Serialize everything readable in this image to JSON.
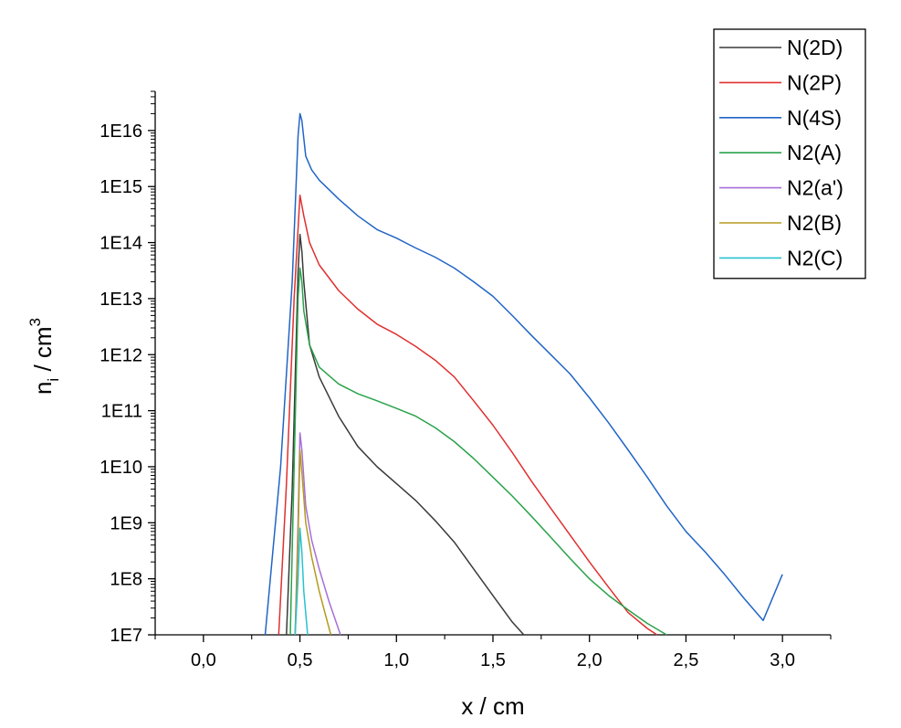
{
  "chart_data": {
    "type": "line",
    "title": "",
    "xlabel": "x / cm",
    "ylabel_main": "n",
    "ylabel_sub": "i",
    "ylabel_mid": " / cm",
    "ylabel_sup": "3",
    "x_scale": "linear",
    "y_scale": "log",
    "xlim": [
      -0.25,
      3.25
    ],
    "ylim": [
      10000000.0,
      5e+16
    ],
    "x_ticks": [
      0.0,
      0.5,
      1.0,
      1.5,
      2.0,
      2.5,
      3.0
    ],
    "x_tick_labels": [
      "0,0",
      "0,5",
      "1,0",
      "1,5",
      "2,0",
      "2,5",
      "3,0"
    ],
    "y_ticks": [
      10000000.0,
      100000000.0,
      1000000000.0,
      10000000000.0,
      100000000000.0,
      1000000000000.0,
      10000000000000.0,
      100000000000000.0,
      1000000000000000.0,
      1e+16
    ],
    "y_tick_labels": [
      "1E7",
      "1E8",
      "1E9",
      "1E10",
      "1E11",
      "1E12",
      "1E13",
      "1E14",
      "1E15",
      "1E16"
    ],
    "grid": false,
    "legend_position": "top-right",
    "series": [
      {
        "name": "N(2D)",
        "color": "#3a3a3a",
        "x": [
          0.43,
          0.46,
          0.49,
          0.5,
          0.51,
          0.52,
          0.55,
          0.6,
          0.7,
          0.8,
          0.9,
          1.0,
          1.1,
          1.2,
          1.3,
          1.4,
          1.5,
          1.6,
          1.66
        ],
        "y": [
          10000000.0,
          4000000000.0,
          30000000000000.0,
          140000000000000.0,
          70000000000000.0,
          20000000000000.0,
          1500000000000.0,
          400000000000.0,
          80000000000.0,
          23000000000.0,
          10000000000.0,
          5000000000.0,
          2500000000.0,
          1100000000.0,
          450000000.0,
          150000000.0,
          50000000.0,
          17000000.0,
          10000000.0
        ]
      },
      {
        "name": "N(2P)",
        "color": "#e0302f",
        "x": [
          0.39,
          0.43,
          0.47,
          0.5,
          0.52,
          0.55,
          0.6,
          0.7,
          0.8,
          0.9,
          1.0,
          1.1,
          1.2,
          1.3,
          1.4,
          1.5,
          1.6,
          1.7,
          1.8,
          1.9,
          2.0,
          2.1,
          2.2,
          2.3,
          2.35
        ],
        "y": [
          10000000.0,
          5000000000.0,
          10000000000000.0,
          700000000000000.0,
          300000000000000.0,
          100000000000000.0,
          40000000000000.0,
          14000000000000.0,
          6500000000000.0,
          3500000000000.0,
          2300000000000.0,
          1400000000000.0,
          800000000000.0,
          400000000000.0,
          150000000000.0,
          55000000000.0,
          18000000000.0,
          5500000000.0,
          1800000000.0,
          600000000.0,
          200000000.0,
          70000000.0,
          25000000.0,
          13000000.0,
          10000000.0
        ]
      },
      {
        "name": "N(4S)",
        "color": "#2165c6",
        "x": [
          0.32,
          0.4,
          0.46,
          0.49,
          0.5,
          0.51,
          0.53,
          0.56,
          0.6,
          0.7,
          0.8,
          0.9,
          1.0,
          1.1,
          1.2,
          1.3,
          1.4,
          1.5,
          1.6,
          1.7,
          1.8,
          1.9,
          2.0,
          2.1,
          2.2,
          2.3,
          2.4,
          2.5,
          2.6,
          2.7,
          2.8,
          2.9,
          3.0
        ],
        "y": [
          10000000.0,
          10000000000.0,
          20000000000000.0,
          8000000000000000.0,
          2e+16,
          1.5e+16,
          3500000000000000.0,
          2000000000000000.0,
          1300000000000000.0,
          600000000000000.0,
          300000000000000.0,
          170000000000000.0,
          120000000000000.0,
          80000000000000.0,
          55000000000000.0,
          35000000000000.0,
          20000000000000.0,
          11000000000000.0,
          5000000000000.0,
          2200000000000.0,
          1000000000000.0,
          450000000000.0,
          170000000000.0,
          60000000000.0,
          20000000000.0,
          6500000000.0,
          2000000000.0,
          700000000.0,
          300000000.0,
          120000000.0,
          45000000.0,
          18000000.0,
          120000000.0
        ]
      },
      {
        "name": "N2(A)",
        "color": "#2aa24a",
        "x": [
          0.45,
          0.47,
          0.49,
          0.5,
          0.51,
          0.52,
          0.55,
          0.6,
          0.7,
          0.8,
          0.9,
          1.0,
          1.1,
          1.2,
          1.3,
          1.4,
          1.5,
          1.6,
          1.7,
          1.8,
          1.9,
          2.0,
          2.1,
          2.2,
          2.3,
          2.4
        ],
        "y": [
          10000000.0,
          10000000000.0,
          10000000000000.0,
          35000000000000.0,
          20000000000000.0,
          6000000000000.0,
          1500000000000.0,
          600000000000.0,
          300000000000.0,
          200000000000.0,
          150000000000.0,
          110000000000.0,
          80000000000.0,
          50000000000.0,
          28000000000.0,
          14000000000.0,
          6500000000.0,
          3000000000.0,
          1300000000.0,
          550000000.0,
          230000000.0,
          100000000.0,
          50000000.0,
          28000000.0,
          16000000.0,
          10000000.0
        ]
      },
      {
        "name": "N2(a')",
        "color": "#a66fd8",
        "x": [
          0.475,
          0.49,
          0.5,
          0.51,
          0.53,
          0.56,
          0.6,
          0.65,
          0.71
        ],
        "y": [
          10000000.0,
          1000000000.0,
          40000000000.0,
          20000000000.0,
          2000000000.0,
          500000000.0,
          150000000.0,
          40000000.0,
          10000000.0
        ]
      },
      {
        "name": "N2(B)",
        "color": "#b59a1e",
        "x": [
          0.475,
          0.49,
          0.5,
          0.51,
          0.53,
          0.56,
          0.6,
          0.66
        ],
        "y": [
          10000000.0,
          500000000.0,
          20000000000.0,
          8000000000.0,
          1000000000.0,
          250000000.0,
          60000000.0,
          10000000.0
        ]
      },
      {
        "name": "N2(C)",
        "color": "#27c3cf",
        "x": [
          0.475,
          0.49,
          0.5,
          0.51,
          0.52,
          0.54
        ],
        "y": [
          10000000.0,
          100000000.0,
          800000000.0,
          300000000.0,
          60000000.0,
          10000000.0
        ]
      }
    ]
  }
}
